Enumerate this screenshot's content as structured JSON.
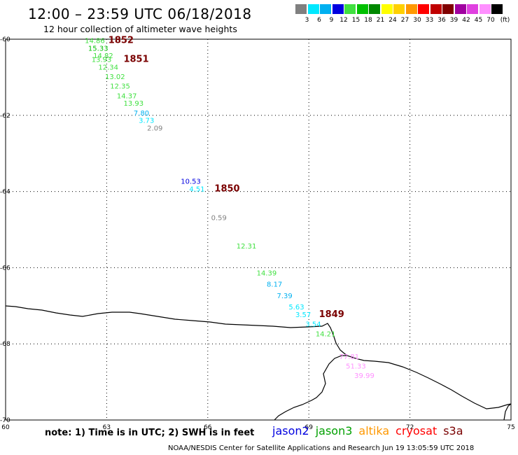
{
  "header": {
    "title": "12:00 – 23:59 UTC 06/18/2018",
    "subtitle": "12 hour collection of altimeter wave heights"
  },
  "color_scale": {
    "unit": "(ft)",
    "bins": [
      {
        "label": "3",
        "color": "#808080"
      },
      {
        "label": "6",
        "color": "#00e8ff"
      },
      {
        "label": "9",
        "color": "#00b0f0"
      },
      {
        "label": "12",
        "color": "#0000e0"
      },
      {
        "label": "15",
        "color": "#40e040"
      },
      {
        "label": "18",
        "color": "#00c000"
      },
      {
        "label": "21",
        "color": "#008800"
      },
      {
        "label": "24",
        "color": "#ffff00"
      },
      {
        "label": "27",
        "color": "#ffd000"
      },
      {
        "label": "30",
        "color": "#ff9800"
      },
      {
        "label": "33",
        "color": "#ff0000"
      },
      {
        "label": "36",
        "color": "#c00000"
      },
      {
        "label": "39",
        "color": "#800000"
      },
      {
        "label": "42",
        "color": "#a000a0"
      },
      {
        "label": "45",
        "color": "#e040e0"
      },
      {
        "label": "70",
        "color": "#ff90ff"
      },
      {
        "label": "",
        "color": "#000000"
      }
    ]
  },
  "map": {
    "lon_range": [
      60,
      75
    ],
    "lat_range": [
      -70,
      -60
    ],
    "lon_ticks": [
      "60",
      "63",
      "66",
      "69",
      "72",
      "75"
    ],
    "lat_ticks": [
      "-60",
      "-62",
      "-64",
      "-66",
      "-68",
      "-70"
    ],
    "passes": [
      {
        "label": "1852",
        "lon": 63.05,
        "lat": -60.1
      },
      {
        "label": "1851",
        "lon": 63.5,
        "lat": -60.6
      },
      {
        "label": "1850",
        "lon": 66.2,
        "lat": -64.0
      },
      {
        "label": "1849",
        "lon": 69.3,
        "lat": -67.3
      }
    ],
    "swh_labels": [
      {
        "text": "14.86",
        "lon": 62.35,
        "lat": -60.1,
        "color": "#40e040"
      },
      {
        "text": "15.33",
        "lon": 62.45,
        "lat": -60.3,
        "color": "#00c000"
      },
      {
        "text": "14.82",
        "lon": 62.6,
        "lat": -60.5,
        "color": "#40e040"
      },
      {
        "text": "13.93",
        "lon": 62.55,
        "lat": -60.6,
        "color": "#40e040"
      },
      {
        "text": "12.34",
        "lon": 62.75,
        "lat": -60.8,
        "color": "#40e040"
      },
      {
        "text": "13.02",
        "lon": 62.95,
        "lat": -61.05,
        "color": "#40e040"
      },
      {
        "text": "12.35",
        "lon": 63.1,
        "lat": -61.3,
        "color": "#40e040"
      },
      {
        "text": "14.37",
        "lon": 63.3,
        "lat": -61.55,
        "color": "#40e040"
      },
      {
        "text": "13.93",
        "lon": 63.5,
        "lat": -61.75,
        "color": "#40e040"
      },
      {
        "text": "7.80",
        "lon": 63.8,
        "lat": -62.0,
        "color": "#00b0f0"
      },
      {
        "text": "3.73",
        "lon": 63.95,
        "lat": -62.2,
        "color": "#00e8ff"
      },
      {
        "text": "2.09",
        "lon": 64.2,
        "lat": -62.4,
        "color": "#808080"
      },
      {
        "text": "10.53",
        "lon": 65.2,
        "lat": -63.8,
        "color": "#0000e0"
      },
      {
        "text": "4.51",
        "lon": 65.45,
        "lat": -64.0,
        "color": "#00e8ff"
      },
      {
        "text": "0.59",
        "lon": 66.1,
        "lat": -64.75,
        "color": "#808080"
      },
      {
        "text": "12.31",
        "lon": 66.85,
        "lat": -65.5,
        "color": "#40e040"
      },
      {
        "text": "14.39",
        "lon": 67.45,
        "lat": -66.2,
        "color": "#40e040"
      },
      {
        "text": "8.17",
        "lon": 67.75,
        "lat": -66.5,
        "color": "#00b0f0"
      },
      {
        "text": "7.39",
        "lon": 68.05,
        "lat": -66.8,
        "color": "#00b0f0"
      },
      {
        "text": "5.63",
        "lon": 68.4,
        "lat": -67.1,
        "color": "#00e8ff"
      },
      {
        "text": "3.57",
        "lon": 68.6,
        "lat": -67.3,
        "color": "#00e8ff"
      },
      {
        "text": "3.54",
        "lon": 68.9,
        "lat": -67.55,
        "color": "#00e8ff"
      },
      {
        "text": "14.21",
        "lon": 69.2,
        "lat": -67.8,
        "color": "#40e040"
      },
      {
        "text": "77.81",
        "lon": 69.9,
        "lat": -68.4,
        "color": "#ff90ff"
      },
      {
        "text": "51.33",
        "lon": 70.1,
        "lat": -68.65,
        "color": "#ff90ff"
      },
      {
        "text": "39.99",
        "lon": 70.35,
        "lat": -68.9,
        "color": "#ff90ff"
      }
    ]
  },
  "footer": {
    "note": "note: 1) Time is in UTC; 2) SWH is in feet",
    "satellites": [
      {
        "name": "jason2",
        "color": "#0000e0"
      },
      {
        "name": "jason3",
        "color": "#00a000"
      },
      {
        "name": "altika",
        "color": "#ff9800"
      },
      {
        "name": "cryosat",
        "color": "#ff0000"
      },
      {
        "name": "s3a",
        "color": "#7a0000"
      }
    ],
    "credit": "NOAA/NESDIS Center for Satellite Applications and Research     Jun 19 13:05:59 UTC 2018"
  }
}
